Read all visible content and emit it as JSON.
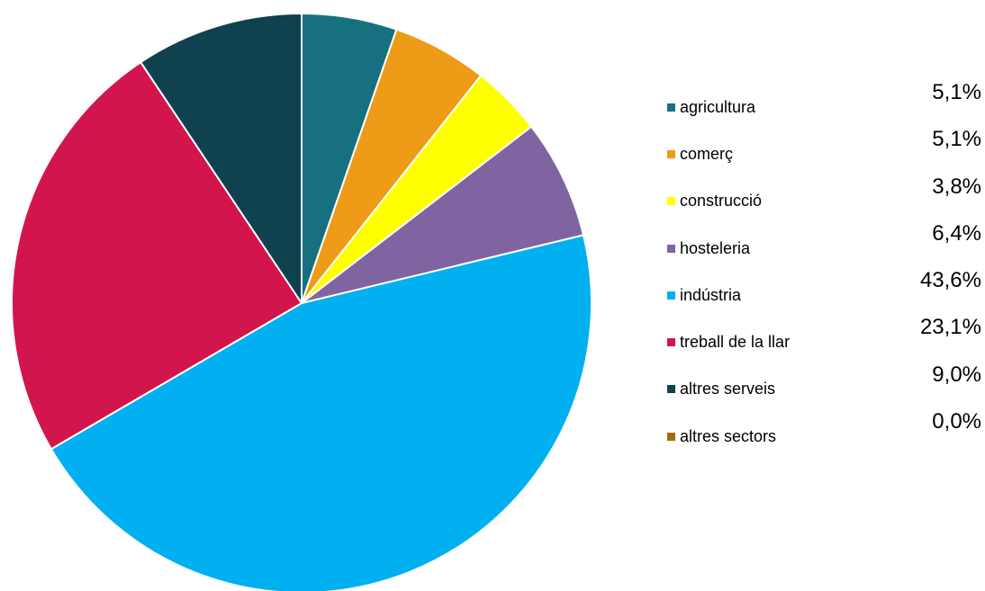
{
  "chart_data": {
    "type": "pie",
    "title": "",
    "slices": [
      {
        "label": "agricultura",
        "value": 5.1,
        "display": "5,1%",
        "color": "#177080"
      },
      {
        "label": "comerç",
        "value": 5.1,
        "display": "5,1%",
        "color": "#ee9b17"
      },
      {
        "label": "construcció",
        "value": 3.8,
        "display": "3,8%",
        "color": "#ffff00"
      },
      {
        "label": "hosteleria",
        "value": 6.4,
        "display": "6,4%",
        "color": "#8064a2"
      },
      {
        "label": "indústria",
        "value": 43.6,
        "display": "43,6%",
        "color": "#00b0f0"
      },
      {
        "label": "treball de la llar",
        "value": 23.1,
        "display": "23,1%",
        "color": "#d3154e"
      },
      {
        "label": "altres serveis",
        "value": 9.0,
        "display": "9,0%",
        "color": "#0f414f"
      },
      {
        "label": "altres sectors",
        "value": 0.0,
        "display": "0,0%",
        "color": "#a06b10"
      }
    ],
    "legend_placement": "right"
  }
}
